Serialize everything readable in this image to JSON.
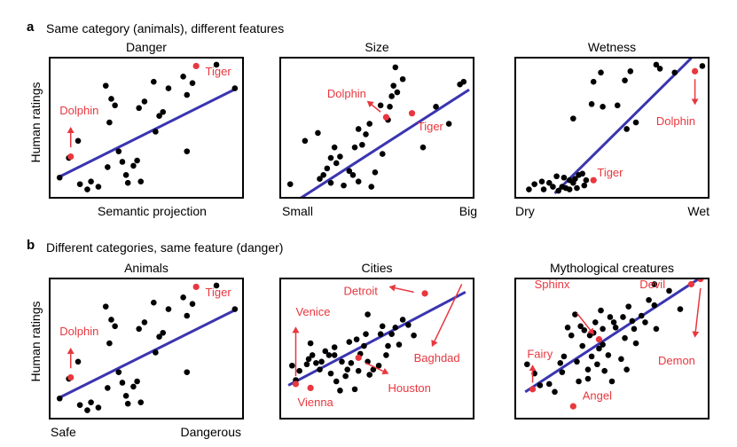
{
  "figure": {
    "panel_a_label": "a",
    "panel_a_title": "Same category (animals), different features",
    "panel_b_label": "b",
    "panel_b_title": "Different categories, same feature (danger)",
    "y_label": "Human ratings"
  },
  "colors": {
    "points": "#000000",
    "highlight": "#e8373e",
    "fit_line": "#3a35b0",
    "frame": "#000000"
  },
  "chart_data": [
    {
      "type": "scatter",
      "title": "Danger",
      "xlabel": "Semantic projection",
      "xlabel_left": "",
      "xlabel_right": "",
      "ylabel": "Human ratings",
      "xlim": [
        0,
        100
      ],
      "ylim": [
        0,
        100
      ],
      "points": [
        [
          3,
          12
        ],
        [
          8,
          27
        ],
        [
          14,
          7
        ],
        [
          13,
          40
        ],
        [
          18,
          3
        ],
        [
          20,
          9
        ],
        [
          24,
          5
        ],
        [
          29,
          20
        ],
        [
          30,
          54
        ],
        [
          31,
          72
        ],
        [
          28,
          82
        ],
        [
          33,
          67
        ],
        [
          35,
          32
        ],
        [
          37,
          24
        ],
        [
          39,
          14
        ],
        [
          40,
          8
        ],
        [
          43,
          21
        ],
        [
          45,
          25
        ],
        [
          46,
          65
        ],
        [
          47,
          9
        ],
        [
          49,
          70
        ],
        [
          55,
          47
        ],
        [
          57,
          59
        ],
        [
          54,
          85
        ],
        [
          59,
          62
        ],
        [
          62,
          80
        ],
        [
          70,
          89
        ],
        [
          72,
          75
        ],
        [
          75,
          84
        ],
        [
          72,
          32
        ],
        [
          88,
          98
        ],
        [
          98,
          80
        ]
      ],
      "fit": [
        [
          2,
          12
        ],
        [
          99,
          80
        ]
      ],
      "highlights": [
        {
          "label": "Tiger",
          "x": 77,
          "y": 97,
          "lx": 82,
          "ly": 90,
          "arrow": null
        },
        {
          "label": "Dolphin",
          "x": 9,
          "y": 28,
          "lx": 3,
          "ly": 60,
          "arrow": [
            9,
            35,
            9,
            50
          ]
        }
      ]
    },
    {
      "type": "scatter",
      "title": "Size",
      "xlabel": "",
      "xlabel_left": "Small",
      "xlabel_right": "Big",
      "ylabel": "",
      "xlim": [
        0,
        100
      ],
      "ylim": [
        0,
        100
      ],
      "points": [
        [
          3,
          7
        ],
        [
          11,
          40
        ],
        [
          18,
          46
        ],
        [
          19,
          11
        ],
        [
          21,
          14
        ],
        [
          23,
          19
        ],
        [
          25,
          8
        ],
        [
          25,
          27
        ],
        [
          27,
          35
        ],
        [
          28,
          23
        ],
        [
          30,
          28
        ],
        [
          32,
          6
        ],
        [
          35,
          17
        ],
        [
          37,
          14
        ],
        [
          40,
          9
        ],
        [
          38,
          35
        ],
        [
          40,
          49
        ],
        [
          42,
          37
        ],
        [
          44,
          45
        ],
        [
          46,
          53
        ],
        [
          47,
          5
        ],
        [
          49,
          16
        ],
        [
          52,
          67
        ],
        [
          53,
          30
        ],
        [
          56,
          56
        ],
        [
          57,
          66
        ],
        [
          58,
          74
        ],
        [
          61,
          77
        ],
        [
          59,
          82
        ],
        [
          60,
          96
        ],
        [
          64,
          87
        ],
        [
          75,
          35
        ],
        [
          82,
          66
        ],
        [
          89,
          53
        ],
        [
          95,
          83
        ],
        [
          97,
          85
        ]
      ],
      "fit": [
        [
          6,
          -6
        ],
        [
          100,
          79
        ]
      ],
      "highlights": [
        {
          "label": "Dolphin",
          "x": 55,
          "y": 58,
          "lx": 23,
          "ly": 73,
          "arrow": [
            52,
            62,
            45,
            70
          ]
        },
        {
          "label": "Tiger",
          "x": 69,
          "y": 61,
          "lx": 72,
          "ly": 48,
          "arrow": null
        }
      ]
    },
    {
      "type": "scatter",
      "title": "Wetness",
      "xlabel": "",
      "xlabel_left": "Dry",
      "xlabel_right": "Wet",
      "ylabel": "",
      "xlim": [
        0,
        100
      ],
      "ylim": [
        0,
        100
      ],
      "points": [
        [
          5,
          3
        ],
        [
          8,
          7
        ],
        [
          12,
          9
        ],
        [
          13,
          3
        ],
        [
          16,
          8
        ],
        [
          18,
          5
        ],
        [
          20,
          13
        ],
        [
          21,
          2
        ],
        [
          23,
          5
        ],
        [
          24,
          12
        ],
        [
          27,
          10
        ],
        [
          27,
          3
        ],
        [
          29,
          8
        ],
        [
          30,
          11
        ],
        [
          31,
          4
        ],
        [
          34,
          15
        ],
        [
          35,
          6
        ],
        [
          36,
          10
        ],
        [
          32,
          14
        ],
        [
          25,
          4
        ],
        [
          29,
          57
        ],
        [
          39,
          68
        ],
        [
          40,
          85
        ],
        [
          44,
          92
        ],
        [
          45,
          66
        ],
        [
          53,
          67
        ],
        [
          57,
          86
        ],
        [
          60,
          93
        ],
        [
          58,
          49
        ],
        [
          63,
          54
        ],
        [
          74,
          98
        ],
        [
          76,
          95
        ],
        [
          84,
          92
        ],
        [
          99,
          97
        ]
      ],
      "fit": [
        [
          19,
          0
        ],
        [
          93,
          103
        ]
      ],
      "highlights": [
        {
          "label": "Dolphin",
          "x": 95,
          "y": 93,
          "lx": 74,
          "ly": 52,
          "arrow": [
            95,
            87,
            95,
            68
          ]
        },
        {
          "label": "Tiger",
          "x": 40,
          "y": 10,
          "lx": 42,
          "ly": 13,
          "arrow": null
        }
      ]
    },
    {
      "type": "scatter",
      "title": "Animals",
      "xlabel": "",
      "xlabel_left": "Safe",
      "xlabel_right": "Dangerous",
      "ylabel": "Human ratings",
      "xlim": [
        0,
        100
      ],
      "ylim": [
        0,
        100
      ],
      "points": [
        [
          3,
          12
        ],
        [
          8,
          27
        ],
        [
          14,
          7
        ],
        [
          13,
          40
        ],
        [
          18,
          3
        ],
        [
          20,
          9
        ],
        [
          24,
          5
        ],
        [
          29,
          20
        ],
        [
          30,
          54
        ],
        [
          31,
          72
        ],
        [
          28,
          82
        ],
        [
          33,
          67
        ],
        [
          35,
          32
        ],
        [
          37,
          24
        ],
        [
          39,
          14
        ],
        [
          40,
          8
        ],
        [
          43,
          21
        ],
        [
          45,
          25
        ],
        [
          46,
          65
        ],
        [
          47,
          9
        ],
        [
          49,
          70
        ],
        [
          55,
          47
        ],
        [
          57,
          59
        ],
        [
          54,
          85
        ],
        [
          59,
          62
        ],
        [
          62,
          80
        ],
        [
          70,
          89
        ],
        [
          72,
          75
        ],
        [
          75,
          84
        ],
        [
          72,
          32
        ],
        [
          88,
          98
        ],
        [
          98,
          80
        ]
      ],
      "fit": [
        [
          2,
          12
        ],
        [
          99,
          80
        ]
      ],
      "highlights": [
        {
          "label": "Tiger",
          "x": 77,
          "y": 97,
          "lx": 82,
          "ly": 90,
          "arrow": null
        },
        {
          "label": "Dolphin",
          "x": 9,
          "y": 28,
          "lx": 3,
          "ly": 60,
          "arrow": [
            9,
            35,
            9,
            50
          ]
        }
      ]
    },
    {
      "type": "scatter",
      "title": "Cities",
      "xlabel": "",
      "xlabel_left": "",
      "xlabel_right": "",
      "ylabel": "",
      "xlim": [
        0,
        100
      ],
      "ylim": [
        0,
        100
      ],
      "points": [
        [
          4,
          37
        ],
        [
          6,
          26
        ],
        [
          8,
          33
        ],
        [
          12,
          38
        ],
        [
          13,
          42
        ],
        [
          15,
          45
        ],
        [
          17,
          39
        ],
        [
          19,
          34
        ],
        [
          20,
          40
        ],
        [
          22,
          48
        ],
        [
          24,
          45
        ],
        [
          25,
          31
        ],
        [
          27,
          45
        ],
        [
          28,
          25
        ],
        [
          30,
          18
        ],
        [
          31,
          40
        ],
        [
          33,
          29
        ],
        [
          34,
          34
        ],
        [
          35,
          55
        ],
        [
          36,
          39
        ],
        [
          38,
          19
        ],
        [
          39,
          57
        ],
        [
          40,
          33
        ],
        [
          41,
          46
        ],
        [
          43,
          52
        ],
        [
          44,
          61
        ],
        [
          45,
          40
        ],
        [
          46,
          30
        ],
        [
          48,
          34
        ],
        [
          51,
          37
        ],
        [
          52,
          61
        ],
        [
          53,
          67
        ],
        [
          55,
          45
        ],
        [
          56,
          52
        ],
        [
          58,
          61
        ],
        [
          60,
          66
        ],
        [
          62,
          53
        ],
        [
          64,
          72
        ],
        [
          67,
          68
        ],
        [
          70,
          60
        ],
        [
          45,
          76
        ],
        [
          27,
          51
        ],
        [
          14,
          54
        ]
      ],
      "fit": [
        [
          2,
          22
        ],
        [
          98,
          93
        ]
      ],
      "highlights": [
        {
          "label": "Detroit",
          "x": 76,
          "y": 92,
          "lx": 32,
          "ly": 91,
          "arrow": [
            70,
            93,
            57,
            97
          ]
        },
        {
          "label": "Baghdad",
          "x": 98,
          "y": 106,
          "lx": 70,
          "ly": 40,
          "arrow": [
            96,
            99,
            80,
            52
          ]
        },
        {
          "label": "Venice",
          "x": 6,
          "y": 23,
          "lx": 6,
          "ly": 75,
          "arrow": [
            6,
            29,
            6,
            66
          ]
        },
        {
          "label": "Vienna",
          "x": 14,
          "y": 20,
          "lx": 7,
          "ly": 6,
          "arrow": null
        },
        {
          "label": "Houston",
          "x": 40,
          "y": 43,
          "lx": 56,
          "ly": 17,
          "arrow": [
            44,
            39,
            56,
            31
          ]
        }
      ]
    },
    {
      "type": "scatter",
      "title": "Mythological creatures",
      "xlabel": "",
      "xlabel_left": "",
      "xlabel_right": "",
      "ylabel": "",
      "xlim": [
        0,
        100
      ],
      "ylim": [
        0,
        100
      ],
      "points": [
        [
          4,
          38
        ],
        [
          8,
          31
        ],
        [
          11,
          22
        ],
        [
          16,
          23
        ],
        [
          19,
          17
        ],
        [
          22,
          39
        ],
        [
          23,
          32
        ],
        [
          24,
          44
        ],
        [
          26,
          66
        ],
        [
          28,
          60
        ],
        [
          30,
          76
        ],
        [
          31,
          40
        ],
        [
          32,
          25
        ],
        [
          33,
          67
        ],
        [
          34,
          52
        ],
        [
          35,
          64
        ],
        [
          37,
          27
        ],
        [
          37,
          34
        ],
        [
          38,
          60
        ],
        [
          39,
          44
        ],
        [
          40,
          62
        ],
        [
          41,
          70
        ],
        [
          42,
          38
        ],
        [
          43,
          50
        ],
        [
          44,
          79
        ],
        [
          45,
          65
        ],
        [
          45,
          53
        ],
        [
          46,
          33
        ],
        [
          48,
          45
        ],
        [
          49,
          74
        ],
        [
          51,
          70
        ],
        [
          52,
          66
        ],
        [
          55,
          42
        ],
        [
          56,
          74
        ],
        [
          57,
          58
        ],
        [
          59,
          82
        ],
        [
          61,
          71
        ],
        [
          62,
          65
        ],
        [
          63,
          54
        ],
        [
          66,
          75
        ],
        [
          68,
          70
        ],
        [
          70,
          87
        ],
        [
          73,
          83
        ],
        [
          74,
          65
        ],
        [
          73,
          99
        ],
        [
          81,
          94
        ],
        [
          87,
          80
        ],
        [
          50,
          25
        ],
        [
          58,
          34
        ]
      ],
      "fit": [
        [
          3,
          17
        ],
        [
          98,
          104
        ]
      ],
      "highlights": [
        {
          "label": "Sphinx",
          "x": 43,
          "y": 57,
          "lx": 8,
          "ly": 96,
          "arrow": [
            31,
            77,
            40,
            61
          ]
        },
        {
          "label": "Devil",
          "x": 93,
          "y": 99,
          "lx": 65,
          "ly": 96,
          "arrow": null
        },
        {
          "label": "Demon",
          "x": 98,
          "y": 103,
          "lx": 75,
          "ly": 38,
          "arrow": [
            98,
            96,
            95,
            59
          ]
        },
        {
          "label": "Fairy",
          "x": 7,
          "y": 19,
          "lx": 4,
          "ly": 43,
          "arrow": [
            7,
            24,
            7,
            37
          ]
        },
        {
          "label": "Angel",
          "x": 29,
          "y": 6,
          "lx": 34,
          "ly": 11,
          "arrow": null
        }
      ]
    }
  ]
}
